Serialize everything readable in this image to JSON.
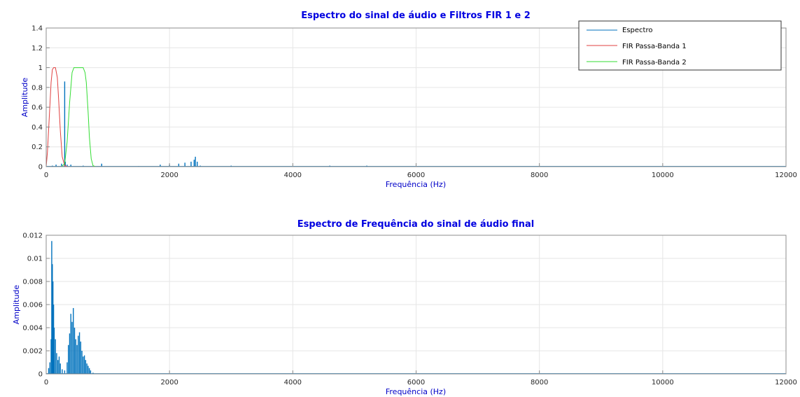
{
  "colors": {
    "spectrum": "#0072bd",
    "fir1": "#e04040",
    "fir2": "#33dd33",
    "title": "#0000e0",
    "axis_label": "#0000c8"
  },
  "chart_data": [
    {
      "type": "line",
      "title": "Espectro do sinal de áudio e Filtros FIR 1 e 2",
      "xlabel": "Frequência (Hz)",
      "ylabel": "Amplitude",
      "xlim": [
        0,
        12000
      ],
      "ylim": [
        0,
        1.4
      ],
      "xticks": [
        0,
        2000,
        4000,
        6000,
        8000,
        10000,
        12000
      ],
      "xtick_labels": [
        "0",
        "2000",
        "4000",
        "6000",
        "8000",
        "10000",
        "12000"
      ],
      "yticks": [
        0,
        0.2,
        0.4,
        0.6,
        0.8,
        1,
        1.2,
        1.4
      ],
      "ytick_labels": [
        "0",
        "0.2",
        "0.4",
        "0.6",
        "0.8",
        "1",
        "1.2",
        "1.4"
      ],
      "grid": true,
      "legend": "top-right",
      "series": [
        {
          "name": "Espectro",
          "color": "#0072bd",
          "style": "spikes",
          "x": [
            100,
            160,
            250,
            300,
            310,
            340,
            400,
            600,
            900,
            1500,
            1850,
            2000,
            2150,
            2250,
            2350,
            2400,
            2420,
            2450,
            2500,
            3000,
            4600,
            5200
          ],
          "y": [
            0.01,
            0.02,
            0.03,
            0.86,
            0.05,
            0.02,
            0.02,
            0.01,
            0.03,
            0.005,
            0.02,
            0.02,
            0.03,
            0.04,
            0.05,
            0.07,
            0.1,
            0.05,
            0.01,
            0.01,
            0.01,
            0.01
          ]
        },
        {
          "name": "FIR Passa-Banda 1",
          "color": "#e04040",
          "style": "line",
          "x": [
            0,
            20,
            50,
            80,
            100,
            120,
            150,
            180,
            200,
            230,
            260,
            300,
            350,
            400
          ],
          "y": [
            0,
            0.15,
            0.5,
            0.85,
            0.98,
            1.0,
            1.0,
            0.9,
            0.7,
            0.35,
            0.1,
            0.01,
            0,
            0
          ]
        },
        {
          "name": "FIR Passa-Banda 2",
          "color": "#33dd33",
          "style": "line",
          "x": [
            0,
            250,
            300,
            340,
            380,
            420,
            450,
            500,
            550,
            600,
            630,
            650,
            680,
            700,
            730,
            760,
            800,
            12000
          ],
          "y": [
            0,
            0,
            0.03,
            0.25,
            0.65,
            0.95,
            1.0,
            1.0,
            1.0,
            1.0,
            0.95,
            0.85,
            0.55,
            0.3,
            0.08,
            0.01,
            0,
            0
          ]
        }
      ]
    },
    {
      "type": "line",
      "title": "Espectro de Frequência do sinal de áudio final",
      "xlabel": "Frequência (Hz)",
      "ylabel": "Amplitude",
      "xlim": [
        0,
        12000
      ],
      "ylim": [
        0,
        0.012
      ],
      "xticks": [
        0,
        2000,
        4000,
        6000,
        8000,
        10000,
        12000
      ],
      "xtick_labels": [
        "0",
        "2000",
        "4000",
        "6000",
        "8000",
        "10000",
        "12000"
      ],
      "yticks": [
        0,
        0.002,
        0.004,
        0.006,
        0.008,
        0.01,
        0.012
      ],
      "ytick_labels": [
        "0",
        "0.002",
        "0.004",
        "0.006",
        "0.008",
        "0.01",
        "0.012"
      ],
      "grid": true,
      "series": [
        {
          "color": "#0072bd",
          "style": "spikes",
          "x": [
            40,
            60,
            80,
            90,
            100,
            110,
            120,
            130,
            150,
            170,
            190,
            210,
            230,
            260,
            300,
            340,
            360,
            380,
            400,
            420,
            440,
            460,
            480,
            500,
            520,
            540,
            560,
            580,
            600,
            620,
            640,
            660,
            680,
            700,
            720,
            760
          ],
          "y": [
            0.0005,
            0.001,
            0.003,
            0.0115,
            0.0095,
            0.008,
            0.006,
            0.004,
            0.003,
            0.0018,
            0.0012,
            0.0015,
            0.0009,
            0.0004,
            0.0003,
            0.001,
            0.0025,
            0.0035,
            0.0052,
            0.0045,
            0.0057,
            0.004,
            0.003,
            0.0025,
            0.0033,
            0.0036,
            0.0028,
            0.002,
            0.0015,
            0.0016,
            0.0012,
            0.0009,
            0.0007,
            0.0005,
            0.0003,
            0.0001
          ]
        }
      ]
    }
  ]
}
